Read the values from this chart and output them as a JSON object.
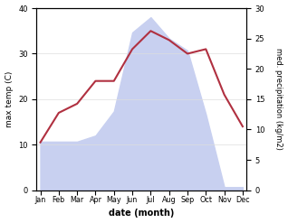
{
  "months": [
    "Jan",
    "Feb",
    "Mar",
    "Apr",
    "May",
    "Jun",
    "Jul",
    "Aug",
    "Sep",
    "Oct",
    "Nov",
    "Dec"
  ],
  "temperature": [
    10.5,
    17.0,
    19.0,
    24.0,
    24.0,
    31.0,
    35.0,
    33.0,
    30.0,
    31.0,
    21.0,
    14.0
  ],
  "precipitation": [
    8.0,
    8.0,
    8.0,
    9.0,
    13.0,
    26.0,
    28.5,
    25.0,
    23.0,
    12.5,
    0.5,
    0.5
  ],
  "temp_color": "#b03040",
  "precip_fill_color": "#c8d0f0",
  "xlabel": "date (month)",
  "ylabel_left": "max temp (C)",
  "ylabel_right": "med. precipitation (kg/m2)",
  "ylim_left": [
    0,
    40
  ],
  "ylim_right": [
    0,
    30
  ],
  "yticks_left": [
    0,
    10,
    20,
    30,
    40
  ],
  "yticks_right": [
    0,
    5,
    10,
    15,
    20,
    25,
    30
  ],
  "background_color": "#ffffff"
}
